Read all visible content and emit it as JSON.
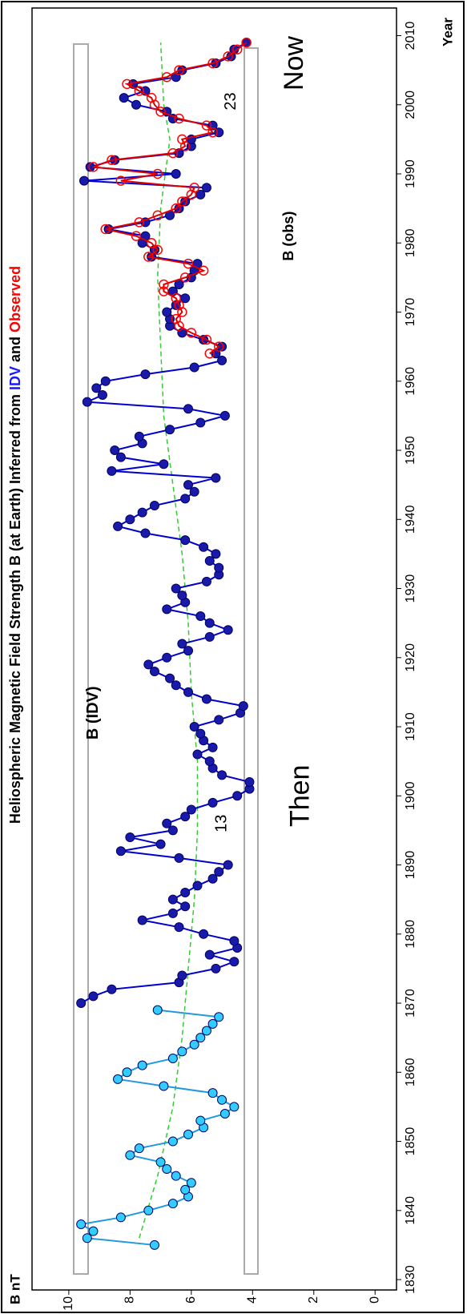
{
  "chart_data": {
    "type": "line",
    "title_parts": [
      "Heliospheric Magnetic Field Strength B (at Earth) Inferred from ",
      "IDV",
      " and ",
      "Observed"
    ],
    "title_colors": [
      "#000000",
      "#1a1aff",
      "#000000",
      "#ff0000"
    ],
    "y_label": "B nT",
    "x_label": "Year",
    "xlim": [
      1828.5,
      2014
    ],
    "xticks": [
      1830,
      1840,
      1850,
      1860,
      1870,
      1880,
      1890,
      1900,
      1910,
      1920,
      1930,
      1940,
      1950,
      1960,
      1970,
      1980,
      1990,
      2000,
      2010
    ],
    "ylim": [
      -0.7,
      11.2
    ],
    "yticks": [
      0,
      2,
      4,
      6,
      8,
      10
    ],
    "series": [
      {
        "color": "#33ccff",
        "line_color": "#2299dd",
        "marker": "filled",
        "x": [
          1835,
          1836,
          1837,
          1838,
          1839,
          1840,
          1841,
          1842,
          1843,
          1844,
          1845,
          1846,
          1847,
          1848,
          1849,
          1850,
          1851,
          1852,
          1853,
          1854,
          1855,
          1856,
          1857,
          1858,
          1859,
          1860,
          1861,
          1862,
          1863,
          1864,
          1865,
          1866,
          1867,
          1868,
          1869
        ],
        "values": [
          7.2,
          9.4,
          9.2,
          9.6,
          8.3,
          7.4,
          6.6,
          6.1,
          6.2,
          6.0,
          6.5,
          6.8,
          7.0,
          8.0,
          7.7,
          6.6,
          6.1,
          5.6,
          5.7,
          4.9,
          4.6,
          5.0,
          5.3,
          6.9,
          8.4,
          8.1,
          7.6,
          6.6,
          6.3,
          5.9,
          5.7,
          5.5,
          5.3,
          5.1,
          7.1
        ]
      },
      {
        "name": "B (IDV)",
        "color": "#1a1aaa",
        "line_color": "#0000cc",
        "marker": "filled",
        "x": [
          1870,
          1871,
          1872,
          1873,
          1874,
          1875,
          1876,
          1877,
          1878,
          1879,
          1880,
          1881,
          1882,
          1883,
          1884,
          1885,
          1886,
          1887,
          1888,
          1889,
          1890,
          1891,
          1892,
          1893,
          1894,
          1895,
          1896,
          1897,
          1898,
          1899,
          1900,
          1901,
          1902,
          1903,
          1904,
          1905,
          1906,
          1907,
          1908,
          1909,
          1910,
          1911,
          1912,
          1913,
          1914,
          1915,
          1916,
          1917,
          1918,
          1919,
          1920,
          1921,
          1922,
          1923,
          1924,
          1925,
          1926,
          1927,
          1928,
          1929,
          1930,
          1931,
          1932,
          1933,
          1934,
          1935,
          1936,
          1937,
          1938,
          1939,
          1940,
          1941,
          1942,
          1943,
          1944,
          1945,
          1946,
          1947,
          1948,
          1949,
          1950,
          1951,
          1952,
          1953,
          1954,
          1955,
          1956,
          1957,
          1958,
          1959,
          1960,
          1961,
          1962,
          1963,
          1964,
          1965,
          1966,
          1967,
          1968,
          1969,
          1970,
          1971,
          1972,
          1973,
          1974,
          1975,
          1976,
          1977,
          1978,
          1979,
          1980,
          1981,
          1982,
          1983,
          1984,
          1985,
          1986,
          1987,
          1988,
          1989,
          1990,
          1991,
          1992,
          1993,
          1994,
          1995,
          1996,
          1997,
          1998,
          1999,
          2000,
          2001,
          2002,
          2003,
          2004,
          2005,
          2006,
          2007,
          2008,
          2009
        ],
        "values": [
          9.6,
          9.2,
          8.6,
          6.4,
          6.3,
          5.2,
          4.6,
          5.4,
          4.5,
          4.6,
          5.6,
          6.4,
          7.6,
          6.6,
          6.2,
          6.6,
          6.2,
          5.8,
          5.3,
          5.1,
          4.8,
          6.4,
          8.3,
          7.0,
          8.0,
          6.6,
          6.8,
          6.2,
          6.0,
          5.3,
          4.5,
          4.1,
          4.1,
          5.0,
          5.3,
          5.4,
          5.8,
          5.3,
          5.6,
          5.7,
          5.9,
          5.1,
          4.4,
          4.3,
          5.5,
          6.1,
          6.5,
          6.7,
          7.2,
          7.4,
          6.8,
          6.1,
          6.3,
          5.4,
          4.8,
          5.4,
          5.7,
          6.8,
          6.2,
          6.3,
          6.5,
          5.5,
          5.1,
          5.1,
          5.4,
          5.2,
          5.6,
          6.2,
          7.5,
          8.4,
          8.0,
          7.6,
          7.2,
          6.2,
          5.9,
          6.1,
          5.2,
          8.6,
          6.9,
          8.3,
          8.5,
          7.6,
          7.7,
          6.7,
          5.7,
          4.9,
          6.1,
          9.4,
          8.9,
          9.1,
          8.8,
          7.5,
          5.9,
          5.0,
          5.2,
          5.0,
          5.6,
          6.3,
          6.7,
          6.7,
          6.8,
          6.5,
          6.2,
          6.6,
          6.4,
          6.0,
          5.9,
          5.8,
          7.3,
          7.2,
          7.6,
          7.5,
          8.7,
          7.5,
          6.7,
          6.4,
          6.2,
          5.7,
          5.5,
          9.5,
          6.5,
          9.3,
          8.5,
          6.4,
          6.0,
          6.0,
          5.1,
          5.3,
          6.6,
          6.8,
          7.8,
          8.2,
          7.5,
          7.9,
          6.5,
          6.3,
          5.2,
          4.7,
          4.6,
          4.2
        ]
      },
      {
        "name": "B (obs)",
        "color": "#ff0000",
        "line_color": "#dd0000",
        "marker": "open",
        "x": [
          1964,
          1965,
          1966,
          1967,
          1968,
          1969,
          1970,
          1971,
          1972,
          1973,
          1974,
          1975,
          1976,
          1977,
          1978,
          1979,
          1980,
          1981,
          1982,
          1983,
          1984,
          1985,
          1986,
          1987,
          1988,
          1989,
          1990,
          1991,
          1992,
          1993,
          1994,
          1995,
          1996,
          1997,
          1998,
          1999,
          2000,
          2001,
          2002,
          2003,
          2004,
          2005,
          2006,
          2007,
          2008,
          2009
        ],
        "values": [
          5.4,
          5.1,
          5.5,
          6.0,
          6.4,
          6.5,
          6.3,
          6.4,
          6.5,
          6.9,
          6.9,
          6.2,
          5.6,
          6.1,
          7.4,
          7.1,
          7.3,
          7.8,
          8.8,
          7.7,
          7.1,
          6.5,
          6.3,
          6.0,
          5.9,
          8.3,
          7.1,
          9.2,
          8.6,
          6.6,
          6.2,
          6.3,
          5.3,
          5.5,
          6.4,
          7.0,
          7.2,
          7.3,
          7.7,
          8.1,
          6.8,
          6.4,
          5.3,
          4.8,
          4.5,
          4.2
        ]
      }
    ],
    "trend": {
      "color": "#33cc33",
      "x": [
        1836,
        1845,
        1855,
        1865,
        1875,
        1885,
        1895,
        1905,
        1915,
        1925,
        1935,
        1945,
        1955,
        1965,
        1975,
        1985,
        1995,
        2000,
        2009
      ],
      "values": [
        7.7,
        7.1,
        6.6,
        6.3,
        6.1,
        5.9,
        5.8,
        5.8,
        6.0,
        6.1,
        6.3,
        6.6,
        6.9,
        7.0,
        7.1,
        7.0,
        6.7,
        6.9,
        7.0
      ]
    },
    "annotations": [
      {
        "text": "B (IDV)",
        "color": "#1a1aff"
      },
      {
        "text": "B (obs)",
        "color": "#ff0000"
      },
      {
        "text": "13"
      },
      {
        "text": "23"
      },
      {
        "text": "Then"
      },
      {
        "text": "Now"
      }
    ]
  }
}
